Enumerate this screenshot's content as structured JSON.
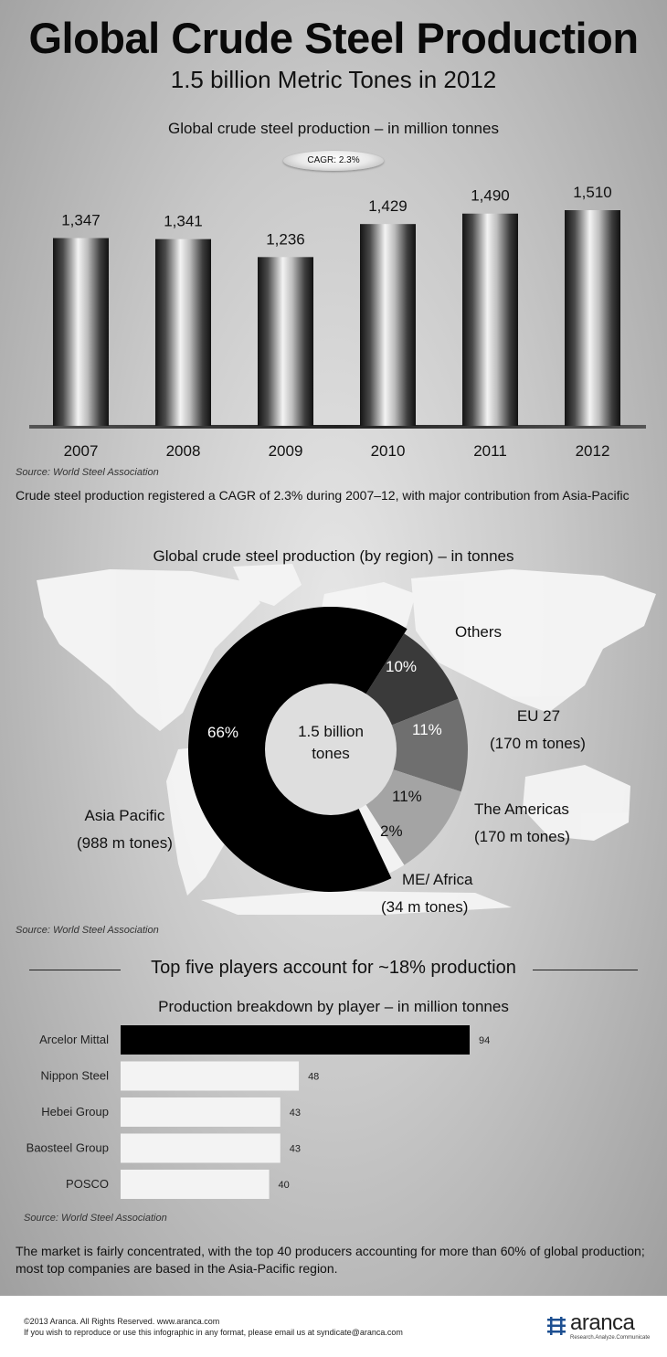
{
  "title": "Global Crude Steel Production",
  "subtitle": "1.5 billion Metric Tones in 2012",
  "badge": "CAGR: 2.3%",
  "source": "Source: World Steel Association",
  "note1": "Crude steel production registered a CAGR of 2.3% during 2007–12, with major contribution from Asia-Pacific",
  "note2": "The market is fairly concentrated, with the top 40 producers accounting for more than 60% of global production; most top companies are based in the Asia-Pacific region.",
  "donut_center": [
    "1.5 billion",
    "tones"
  ],
  "top5_heading": "Top five players account for ~18% production",
  "footer": {
    "copyright": "©2013 Aranca. All Rights Reserved. www.aranca.com",
    "reproduce": "If you wish to reproduce or use this infographic in any format, please email us at syndicate@aranca.com",
    "logo_text": "aranca",
    "logo_tagline": "Research.Analyze.Communicate"
  },
  "colors": {
    "asia_pacific": "#000000",
    "others": "#3a3a3a",
    "eu27": "#6f6f6f",
    "americas": "#a4a4a4",
    "me_africa": "#f2f2f2",
    "bar_top": "#000000",
    "bar_rest": "#f3f3f3"
  },
  "chart_data": [
    {
      "type": "bar",
      "title": "Global crude steel production – in million tonnes",
      "categories": [
        "2007",
        "2008",
        "2009",
        "2010",
        "2011",
        "2012"
      ],
      "values": [
        1347,
        1341,
        1236,
        1429,
        1490,
        1510
      ],
      "value_labels": [
        "1,347",
        "1,341",
        "1,236",
        "1,429",
        "1,490",
        "1,510"
      ]
    },
    {
      "type": "pie",
      "title": "Global crude steel production (by region) – in tonnes",
      "slices": [
        {
          "label": "Asia Pacific",
          "sublabel": "(988 m tones)",
          "value": 66,
          "pct_label": "66%"
        },
        {
          "label": "Others",
          "sublabel": "",
          "value": 10,
          "pct_label": "10%"
        },
        {
          "label": "EU 27",
          "sublabel": "(170 m tones)",
          "value": 11,
          "pct_label": "11%"
        },
        {
          "label": "The Americas",
          "sublabel": "(170 m tones)",
          "value": 11,
          "pct_label": "11%"
        },
        {
          "label": "ME/ Africa",
          "sublabel": "(34 m tones)",
          "value": 2,
          "pct_label": "2%"
        }
      ]
    },
    {
      "type": "bar",
      "orientation": "horizontal",
      "title": "Production breakdown by player – in million tonnes",
      "categories": [
        "Arcelor Mittal",
        "Nippon Steel",
        "Hebei Group",
        "Baosteel Group",
        "POSCO"
      ],
      "values": [
        94,
        48,
        43,
        43,
        40
      ]
    }
  ]
}
